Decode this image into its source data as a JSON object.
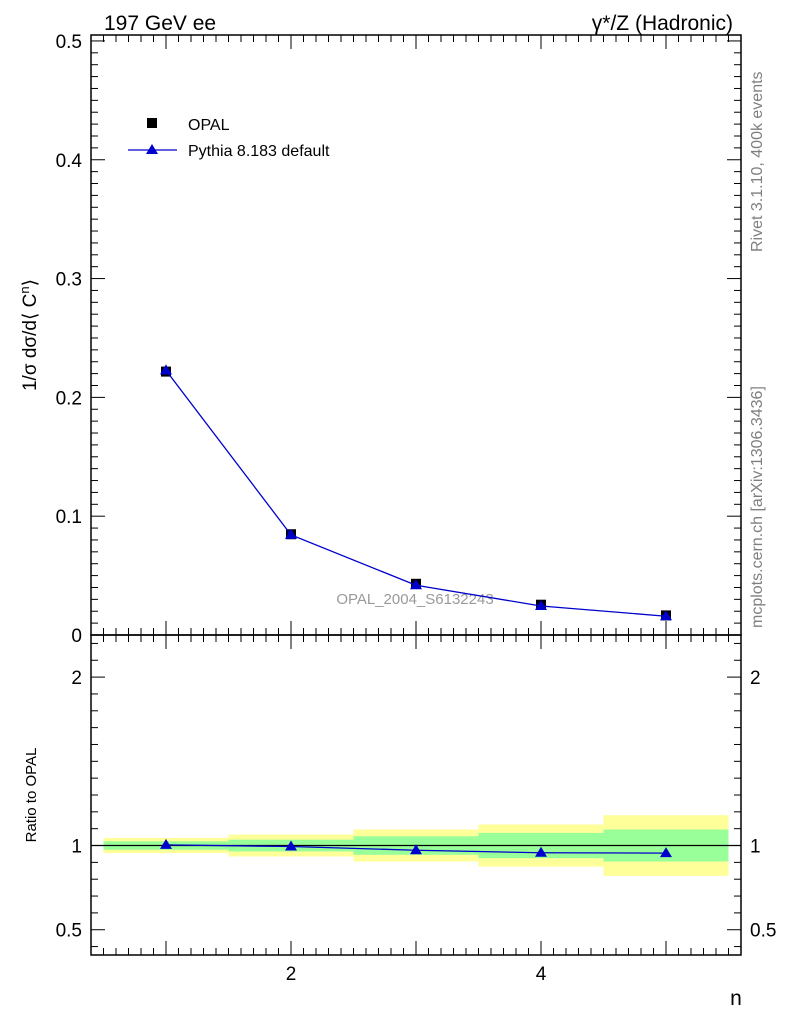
{
  "header": {
    "left_title": "197 GeV ee",
    "right_title": "γ*/Z (Hadronic)"
  },
  "side_labels": {
    "rivet": "Rivet 3.1.10,  400k events",
    "mcplots": "mcplots.cern.ch [arXiv:1306.3436]"
  },
  "watermark": "OPAL_2004_S6132243",
  "chart_data": [
    {
      "id": "main",
      "type": "scatter",
      "title": "",
      "ylabel_parts": {
        "base": "1/σ dσ/d⟨ C",
        "sup": "n",
        "close": "⟩"
      },
      "xlim": [
        0.4,
        5.6
      ],
      "ylim": [
        0,
        0.505
      ],
      "yticks": [
        0,
        0.1,
        0.2,
        0.3,
        0.4,
        0.5
      ],
      "ytick_labels": [
        "0",
        "0.1",
        "0.2",
        "0.3",
        "0.4",
        "0.5"
      ],
      "legend_position": "top-left",
      "series": [
        {
          "name": "OPAL",
          "marker": "square",
          "color": "#000000",
          "x": [
            1,
            2,
            3,
            4,
            5
          ],
          "y": [
            0.2217,
            0.0848,
            0.0431,
            0.0255,
            0.0165
          ]
        },
        {
          "name": "Pythia 8.183 default",
          "marker": "triangle",
          "line": true,
          "color": "#0000cc",
          "x": [
            1,
            2,
            3,
            4,
            5
          ],
          "y": [
            0.2227,
            0.0843,
            0.0419,
            0.0244,
            0.0158
          ]
        }
      ]
    },
    {
      "id": "ratio",
      "type": "line",
      "ylabel": "Ratio to OPAL",
      "xlabel": "n",
      "xlim": [
        0.4,
        5.6
      ],
      "ylim": [
        0.35,
        2.25
      ],
      "xticks": [
        2,
        4
      ],
      "xtick_labels": [
        "2",
        "4"
      ],
      "yticks": [
        0.5,
        1,
        2
      ],
      "ytick_labels": [
        "0.5",
        "1",
        "2"
      ],
      "reference_line": 1,
      "bands": [
        {
          "x0": 0.5,
          "x1": 1.5,
          "inner": [
            0.975,
            1.025
          ],
          "outer": [
            0.955,
            1.045
          ]
        },
        {
          "x0": 1.5,
          "x1": 2.5,
          "inner": [
            0.965,
            1.035
          ],
          "outer": [
            0.935,
            1.065
          ]
        },
        {
          "x0": 2.5,
          "x1": 3.5,
          "inner": [
            0.945,
            1.055
          ],
          "outer": [
            0.905,
            1.095
          ]
        },
        {
          "x0": 3.5,
          "x1": 4.5,
          "inner": [
            0.925,
            1.075
          ],
          "outer": [
            0.875,
            1.125
          ]
        },
        {
          "x0": 4.5,
          "x1": 5.5,
          "inner": [
            0.905,
            1.095
          ],
          "outer": [
            0.82,
            1.18
          ]
        }
      ],
      "band_colors": {
        "inner": "#99ff99",
        "outer": "#ffff99"
      },
      "series": [
        {
          "name": "Pythia 8.183 default",
          "marker": "triangle",
          "color": "#0000cc",
          "x": [
            1,
            2,
            3,
            4,
            5
          ],
          "y": [
            1.004,
            0.994,
            0.972,
            0.957,
            0.955
          ]
        }
      ]
    }
  ]
}
